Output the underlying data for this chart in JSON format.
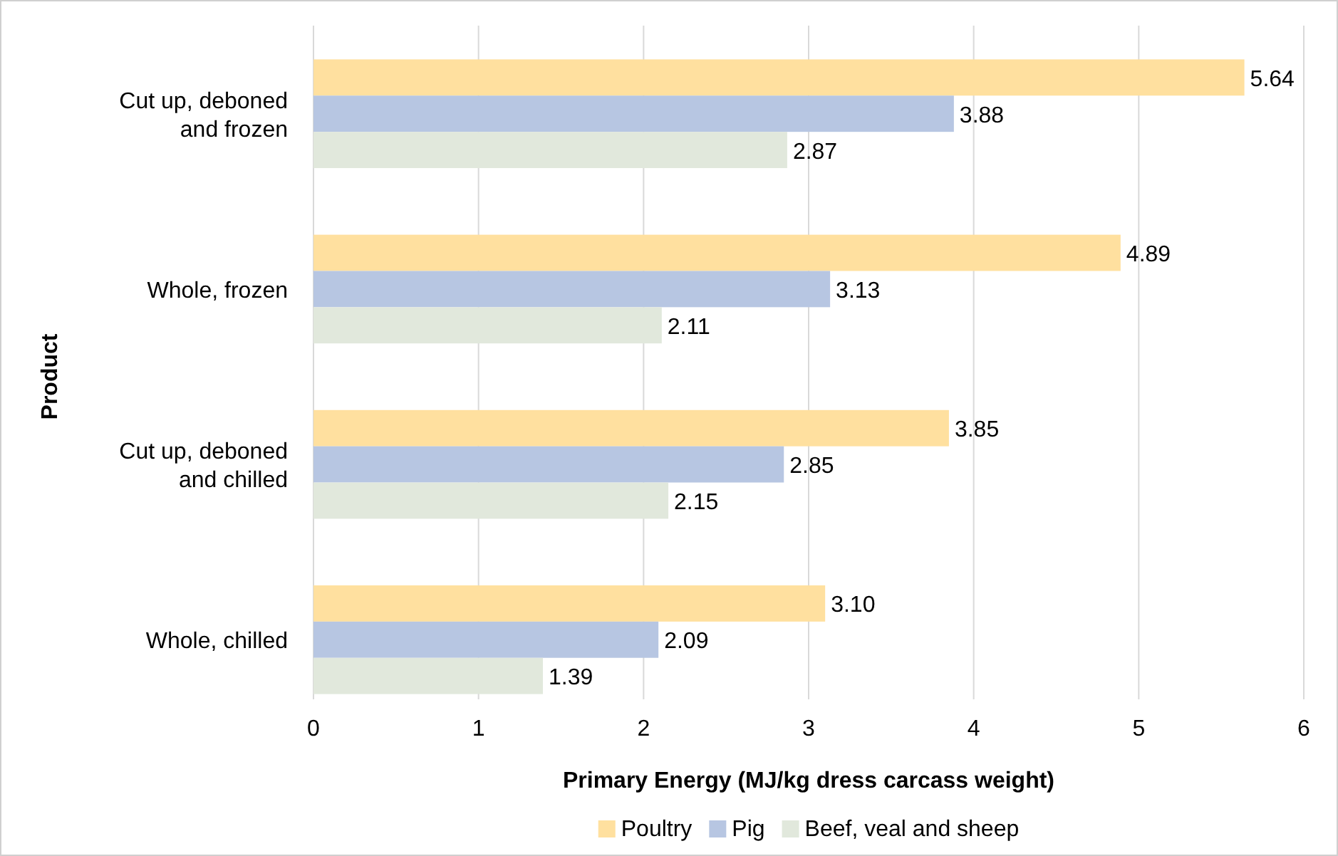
{
  "chart_data": {
    "type": "bar",
    "orientation": "horizontal",
    "categories": [
      "Cut up, deboned and frozen",
      "Whole, frozen",
      "Cut up, deboned and chilled",
      "Whole, chilled"
    ],
    "series": [
      {
        "name": "Poultry",
        "color": "#ffe09f",
        "values": [
          5.64,
          4.89,
          3.85,
          3.1
        ],
        "value_labels": [
          "5.64",
          "4.89",
          "3.85",
          "3.10"
        ]
      },
      {
        "name": "Pig",
        "color": "#b7c6e2",
        "values": [
          3.88,
          3.13,
          2.85,
          2.09
        ],
        "value_labels": [
          "3.88",
          "3.13",
          "2.85",
          "2.09"
        ]
      },
      {
        "name": "Beef, veal and sheep",
        "color": "#e1e8dc",
        "values": [
          2.87,
          2.11,
          2.15,
          1.39
        ],
        "value_labels": [
          "2.87",
          "2.11",
          "2.15",
          "1.39"
        ]
      }
    ],
    "xlim": [
      0,
      6
    ],
    "xticks": [
      0,
      1,
      2,
      3,
      4,
      5,
      6
    ],
    "xlabel": "Primary Energy (MJ/kg dress carcass weight)",
    "ylabel": "Product",
    "grid": "x",
    "legend": "bottom"
  }
}
